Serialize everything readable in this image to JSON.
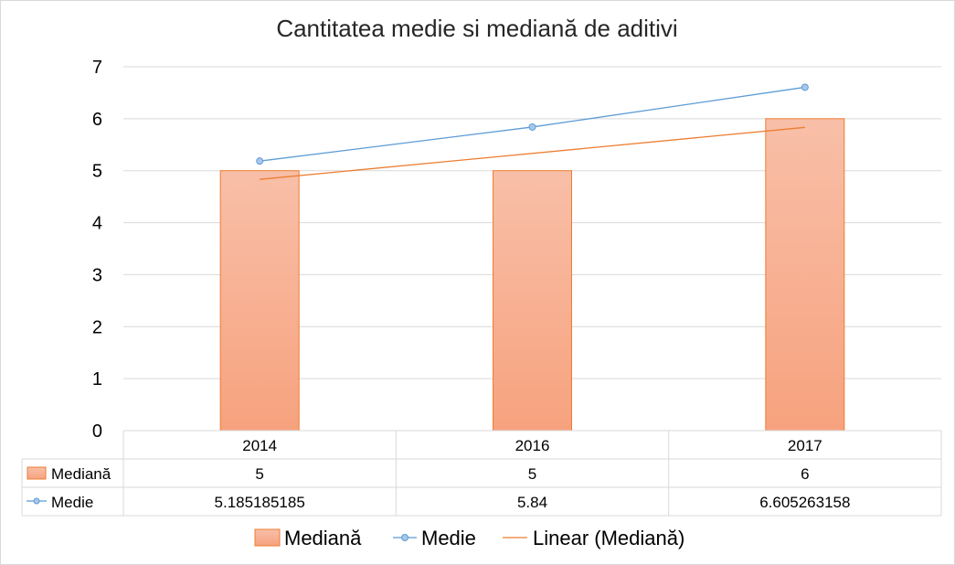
{
  "chart_data": {
    "type": "bar",
    "title": "Cantitatea medie si mediană de aditivi",
    "categories": [
      "2014",
      "2016",
      "2017"
    ],
    "ylim": [
      0,
      7
    ],
    "y_ticks": [
      0,
      1,
      2,
      3,
      4,
      5,
      6,
      7
    ],
    "grid": true,
    "legend_position": "bottom",
    "series": [
      {
        "name": "Mediană",
        "kind": "bar",
        "values": [
          5,
          5,
          6
        ],
        "table_values": [
          "5",
          "5",
          "6"
        ],
        "fill_top": "#f8bfa8",
        "fill_bottom": "#f7a27e",
        "stroke": "#ed7d31"
      },
      {
        "name": "Medie",
        "kind": "line",
        "marker": "circle",
        "values": [
          5.185185185,
          5.84,
          6.605263158
        ],
        "table_values": [
          "5.185185185",
          "5.84",
          "6.605263158"
        ],
        "color": "#5b9bd5"
      }
    ],
    "trendline": {
      "name": "Linear (Mediană)",
      "of_series": "Mediană",
      "type": "linear",
      "color": "#ed7d31"
    },
    "data_table": true
  }
}
